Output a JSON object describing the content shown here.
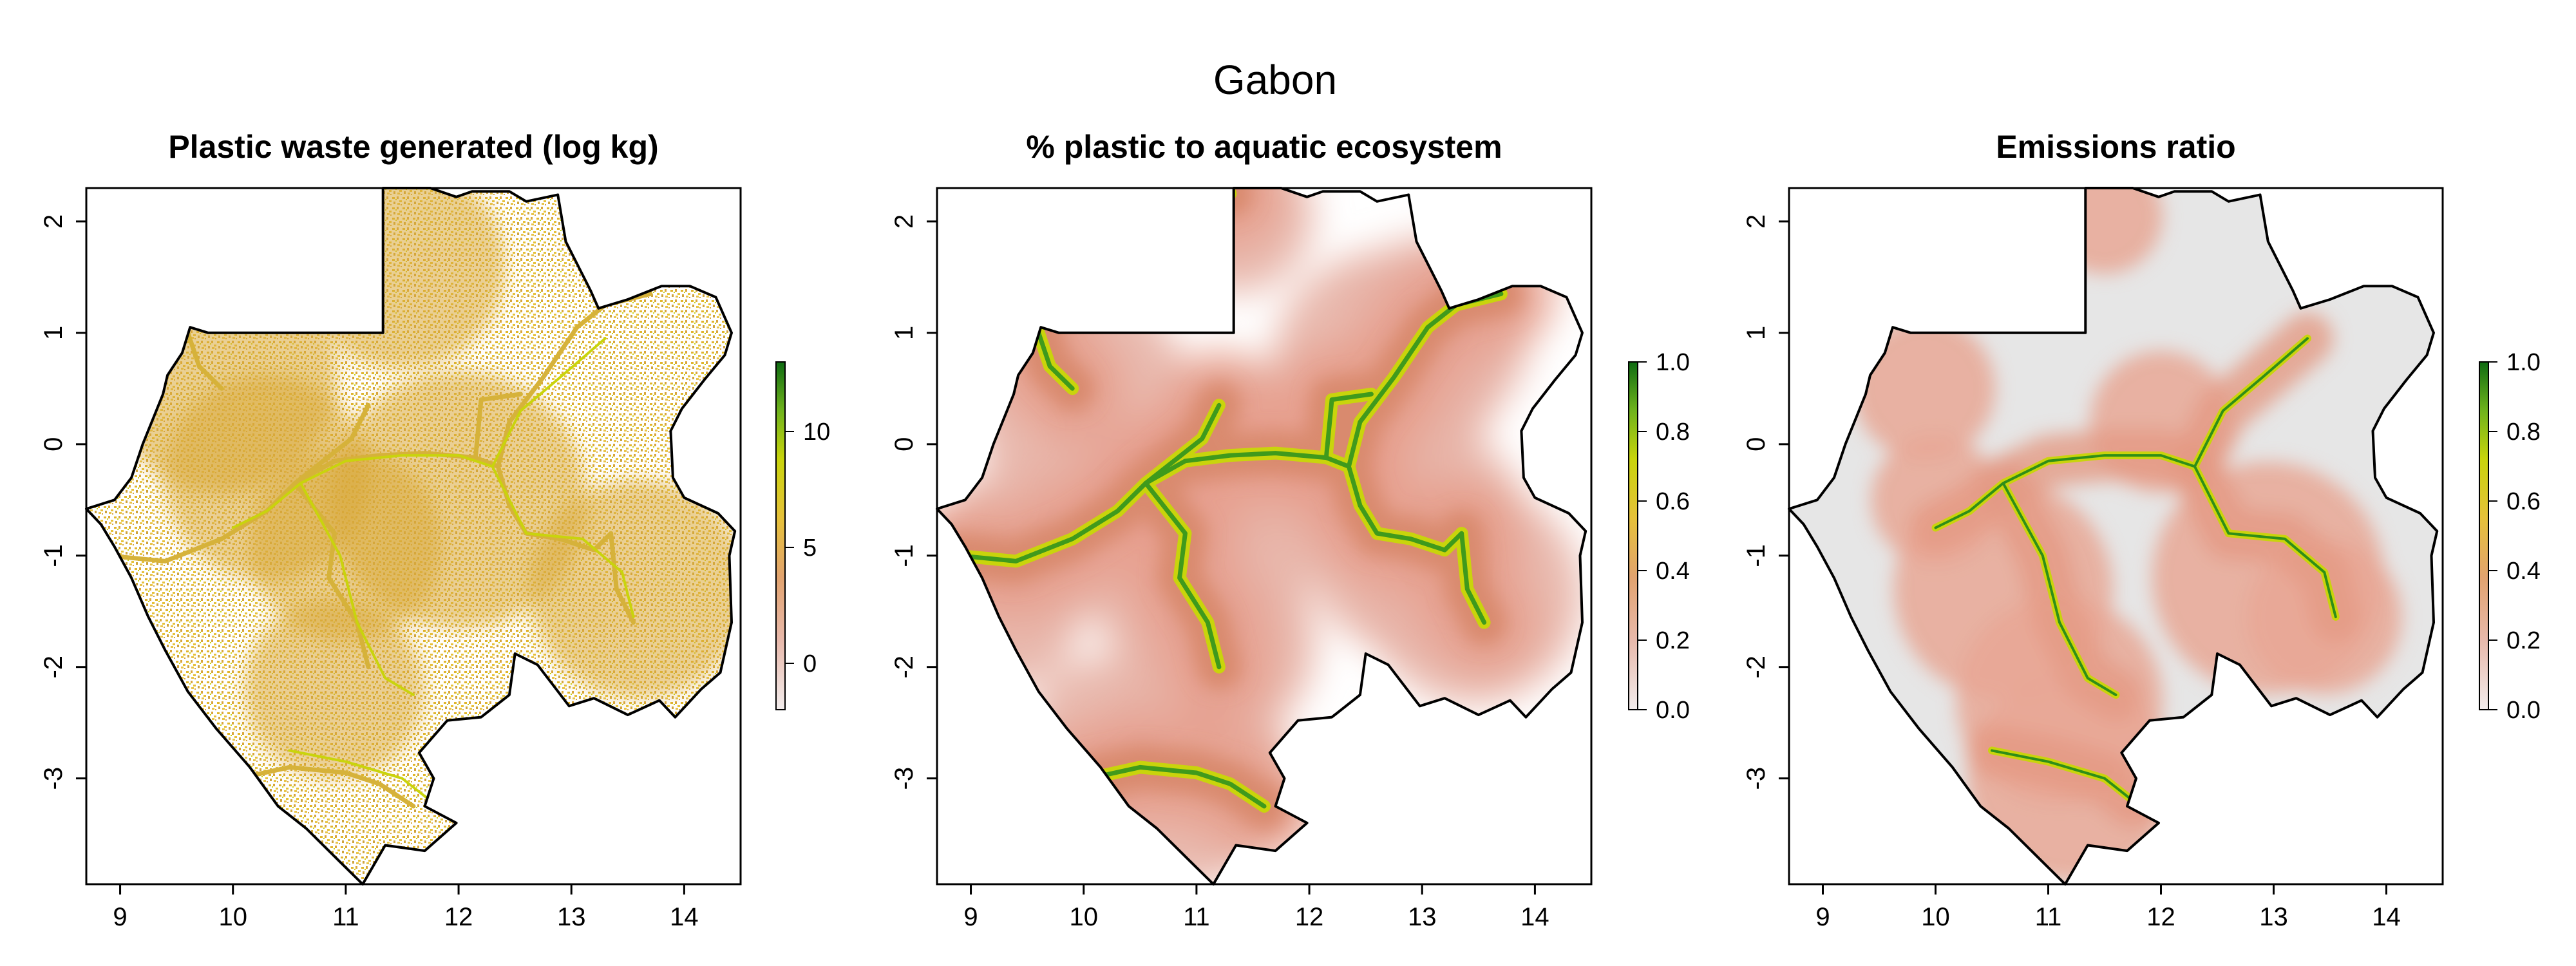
{
  "figure_title": "Gabon",
  "colors": {
    "scale_low": "#f3eded",
    "scale_mid_low": "#e2a390",
    "scale_mid": "#e7c13a",
    "scale_mid_high": "#c9d40c",
    "scale_high": "#0e6b12",
    "background_land": "#e6e6e6",
    "outline": "#000000"
  },
  "chart_data": [
    {
      "type": "heatmap",
      "title": "Plastic waste generated (log kg)",
      "x_ticks": [
        9,
        10,
        11,
        12,
        13,
        14
      ],
      "y_ticks": [
        2,
        1,
        0,
        -1,
        -2,
        -3
      ],
      "xlim": [
        8.7,
        14.5
      ],
      "ylim": [
        -3.95,
        2.3
      ],
      "colorbar": {
        "range": [
          -2,
          13
        ],
        "ticks": [
          10,
          5,
          0
        ]
      },
      "hotspots": [
        {
          "x": 9.9,
          "y": 0.6,
          "value": 4
        },
        {
          "x": 10.3,
          "y": -0.3,
          "value": 3.5
        },
        {
          "x": 10.9,
          "y": -2.2,
          "value": 4
        },
        {
          "x": 13.6,
          "y": -1.3,
          "value": 4
        },
        {
          "x": 12.0,
          "y": -0.5,
          "value": 3
        },
        {
          "x": 11.5,
          "y": 1.6,
          "value": 3
        }
      ]
    },
    {
      "type": "heatmap",
      "title": "% plastic to aquatic ecosystem",
      "x_ticks": [
        9,
        10,
        11,
        12,
        13,
        14
      ],
      "y_ticks": [
        2,
        1,
        0,
        -1,
        -2,
        -3
      ],
      "xlim": [
        8.7,
        14.5
      ],
      "ylim": [
        -3.95,
        2.3
      ],
      "colorbar": {
        "range": [
          0,
          1
        ],
        "ticks": [
          "1.0",
          "0.8",
          "0.6",
          "0.4",
          "0.2",
          "0.0"
        ]
      }
    },
    {
      "type": "heatmap",
      "title": "Emissions ratio",
      "x_ticks": [
        9,
        10,
        11,
        12,
        13,
        14
      ],
      "y_ticks": [
        2,
        1,
        0,
        -1,
        -2,
        -3
      ],
      "xlim": [
        8.7,
        14.5
      ],
      "ylim": [
        -3.95,
        2.3
      ],
      "colorbar": {
        "range": [
          0,
          1
        ],
        "ticks": [
          "1.0",
          "0.8",
          "0.6",
          "0.4",
          "0.2",
          "0.0"
        ]
      }
    }
  ]
}
